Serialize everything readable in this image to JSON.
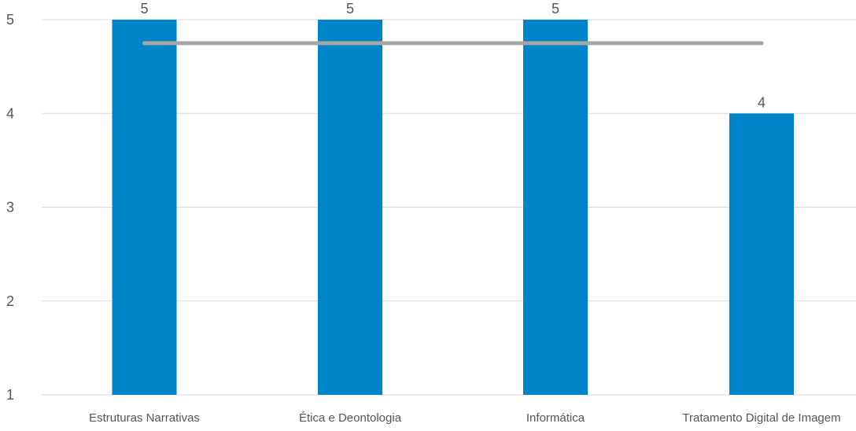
{
  "chart_data": {
    "type": "bar",
    "title": "",
    "xlabel": "",
    "ylabel": "",
    "categories": [
      "Estruturas Narrativas",
      "Ética e Deontologia",
      "Informática",
      "Tratamento Digital de Imagem"
    ],
    "series": [
      {
        "type": "bar",
        "values": [
          5,
          5,
          5,
          4
        ],
        "color": "#0084C9"
      },
      {
        "type": "line",
        "values": [
          4.75,
          4.75,
          4.75,
          4.75
        ],
        "color": "#A6A6A6"
      }
    ],
    "data_labels": [
      "5",
      "5",
      "5",
      "4"
    ],
    "ylim": [
      1,
      5
    ],
    "yticks": [
      1,
      2,
      3,
      4,
      5
    ],
    "grid": true,
    "legend": "none"
  }
}
